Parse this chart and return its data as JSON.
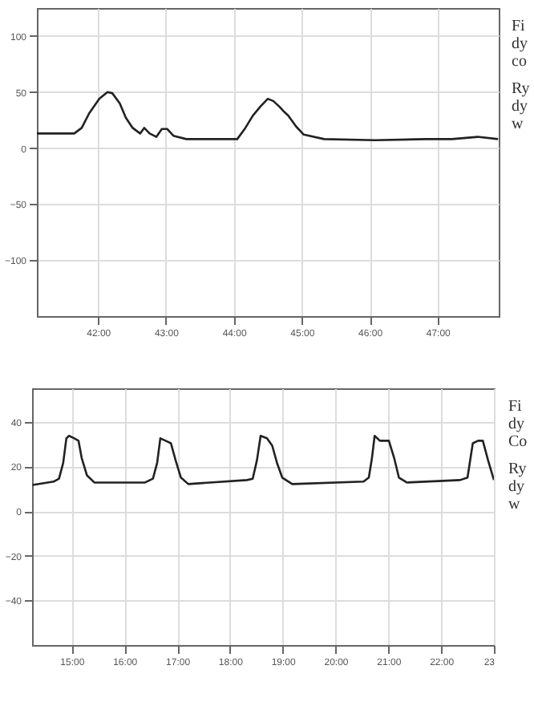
{
  "chart_data": [
    {
      "type": "line",
      "annotations": [
        "Fi",
        "dy",
        "co",
        "Ry",
        "dy",
        "w"
      ],
      "x": [
        41.1,
        41.65,
        41.76,
        41.87,
        42.02,
        42.14,
        42.21,
        42.32,
        42.41,
        42.51,
        42.62,
        42.68,
        42.76,
        42.86,
        42.94,
        43.02,
        43.11,
        43.3,
        43.68,
        44.05,
        44.17,
        44.28,
        44.39,
        44.5,
        44.58,
        44.67,
        44.73,
        44.8,
        44.92,
        45.03,
        45.33,
        46.08,
        46.83,
        47.21,
        47.59,
        47.89
      ],
      "series": [
        {
          "color": "#222222",
          "values": [
            13,
            13,
            18,
            31,
            44,
            50,
            49,
            40,
            27,
            18,
            13,
            18,
            13,
            10,
            17,
            17,
            11,
            8,
            8,
            8,
            18,
            29,
            37,
            44,
            42,
            37,
            33,
            29,
            19,
            12,
            8,
            7,
            8,
            8,
            10,
            8
          ]
        }
      ],
      "xlim": [
        41.1,
        47.9
      ],
      "xticks": [
        {
          "value": 42,
          "label": "42:00"
        },
        {
          "value": 43,
          "label": "43:00"
        },
        {
          "value": 44,
          "label": "44:00"
        },
        {
          "value": 45,
          "label": "45:00"
        },
        {
          "value": 46,
          "label": "46:00"
        },
        {
          "value": 47,
          "label": "47:00"
        }
      ],
      "ylim": [
        -150,
        125
      ],
      "yticks": [
        100,
        50,
        0,
        -50,
        -100
      ],
      "grid": true
    },
    {
      "type": "line",
      "annotations": [
        "Fi",
        "dy",
        "Co",
        "Ry",
        "dy",
        "w"
      ],
      "x": [
        14.26,
        14.66,
        14.76,
        14.84,
        14.9,
        14.95,
        15.05,
        15.13,
        15.19,
        15.29,
        15.43,
        16.39,
        16.54,
        16.62,
        16.68,
        16.78,
        16.88,
        16.97,
        17.07,
        17.21,
        18.32,
        18.43,
        18.51,
        18.58,
        18.7,
        18.8,
        18.89,
        18.99,
        19.18,
        20.53,
        20.63,
        20.69,
        20.74,
        20.84,
        21.01,
        21.11,
        21.2,
        21.35,
        22.36,
        22.5,
        22.6,
        22.7,
        22.79,
        22.89,
        23.0
      ],
      "series": [
        {
          "color": "#222222",
          "values": [
            11.7,
            13.2,
            14.5,
            21.6,
            32.6,
            33.7,
            32.6,
            31.5,
            23.8,
            16,
            12.8,
            12.8,
            14.5,
            21.6,
            32.6,
            31.5,
            30.4,
            22.7,
            15,
            12.1,
            13.9,
            14.5,
            22.7,
            33.7,
            32.6,
            29.3,
            21.6,
            15,
            12.1,
            13.2,
            15,
            23.8,
            33.7,
            31.5,
            31.5,
            23.8,
            15,
            12.8,
            13.9,
            15,
            30.4,
            31.5,
            31.5,
            22.7,
            13.9
          ]
        }
      ],
      "xlim": [
        14.25,
        23
      ],
      "xticks": [
        {
          "value": 15,
          "label": "15:00"
        },
        {
          "value": 16,
          "label": "16:00"
        },
        {
          "value": 17,
          "label": "17:00"
        },
        {
          "value": 18,
          "label": "18:00"
        },
        {
          "value": 19,
          "label": "19:00"
        },
        {
          "value": 20,
          "label": "20:00"
        },
        {
          "value": 21,
          "label": "21:00"
        },
        {
          "value": 22,
          "label": "22:00"
        },
        {
          "value": 23,
          "label": "23"
        }
      ],
      "ylim": [
        -60,
        55
      ],
      "yticks": [
        40,
        20,
        0,
        -20,
        -40
      ],
      "grid": true
    }
  ]
}
